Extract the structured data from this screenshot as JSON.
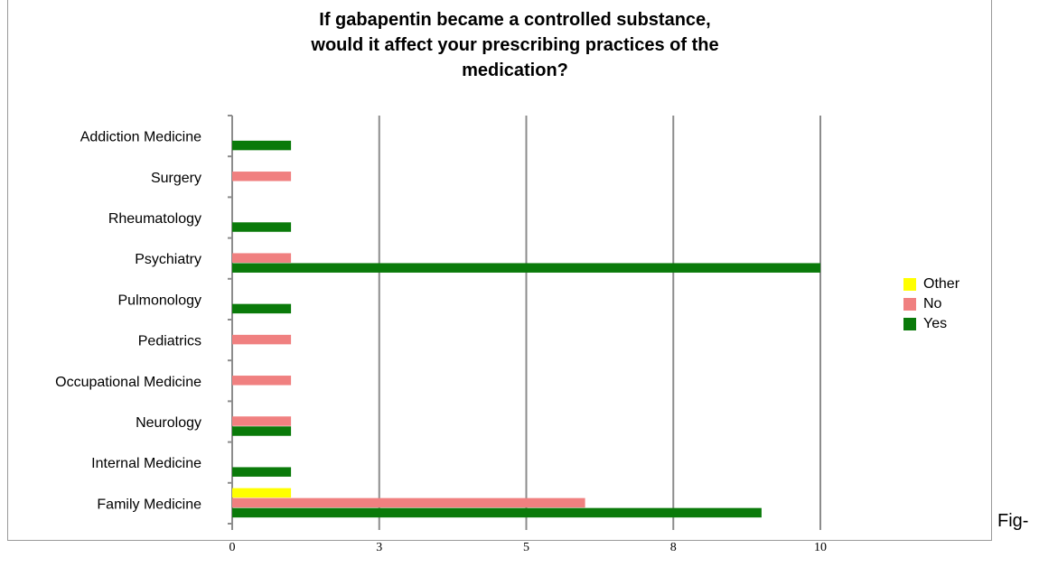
{
  "figure_suffix": "Fig-",
  "chart_data": {
    "type": "bar",
    "orientation": "horizontal",
    "title": "If gabapentin became a controlled substance,\nwould it affect your prescribing practices of the\nmedication?",
    "categories": [
      "Addiction Medicine",
      "Surgery",
      "Rheumatology",
      "Psychiatry",
      "Pulmonology",
      "Pediatrics",
      "Occupational Medicine",
      "Neurology",
      "Internal Medicine",
      "Family Medicine"
    ],
    "series": [
      {
        "name": "Other",
        "color": "#ffff00",
        "values": [
          0,
          0,
          0,
          0,
          0,
          0,
          0,
          0,
          0,
          1
        ]
      },
      {
        "name": "No",
        "color": "#f08080",
        "values": [
          0,
          1,
          0,
          1,
          0,
          1,
          1,
          1,
          0,
          6
        ]
      },
      {
        "name": "Yes",
        "color": "#0a7a0a",
        "values": [
          1,
          0,
          1,
          10,
          1,
          0,
          0,
          1,
          1,
          9
        ]
      }
    ],
    "x_ticks": [
      0,
      2.5,
      5,
      7.5,
      10
    ],
    "x_tick_labels": [
      "0",
      "3",
      "5",
      "8",
      "10"
    ],
    "xlim": [
      0,
      10
    ],
    "grid": true,
    "legend_position": "right"
  }
}
